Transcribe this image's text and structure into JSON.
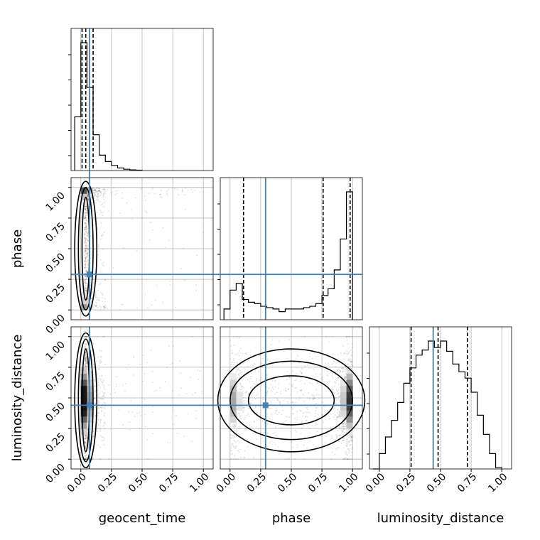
{
  "chart_data": {
    "type": "corner",
    "parameters": [
      "geocent_time",
      "phase",
      "luminosity_distance"
    ],
    "ticks": [
      0.0,
      0.25,
      0.5,
      0.75,
      1.0
    ],
    "tick_labels": [
      "0.00",
      "0.25",
      "0.50",
      "0.75",
      "1.00"
    ],
    "range": [
      -0.08,
      1.08
    ],
    "grid": true,
    "truth": {
      "geocent_time": 0.07,
      "phase": 0.29,
      "luminosity_distance": 0.44
    },
    "truth_color": "#4682b4",
    "quantiles": {
      "geocent_time": [
        0.01,
        0.04,
        0.1
      ],
      "phase": [
        0.11,
        0.76,
        0.98
      ],
      "luminosity_distance": [
        0.26,
        0.48,
        0.72
      ]
    },
    "histograms": {
      "geocent_time": {
        "edges": [
          -0.05,
          0.0,
          0.05,
          0.1,
          0.15,
          0.2,
          0.25,
          0.3,
          0.35,
          0.4,
          0.45,
          0.5
        ],
        "values": [
          0.42,
          1.0,
          0.65,
          0.28,
          0.12,
          0.07,
          0.04,
          0.02,
          0.01,
          0.005,
          0.003
        ]
      },
      "phase": {
        "edges": [
          -0.05,
          0.0,
          0.05,
          0.1,
          0.15,
          0.2,
          0.25,
          0.3,
          0.35,
          0.4,
          0.45,
          0.5,
          0.55,
          0.6,
          0.65,
          0.7,
          0.75,
          0.8,
          0.85,
          0.9,
          0.95,
          1.0
        ],
        "values": [
          0.08,
          0.22,
          0.27,
          0.15,
          0.13,
          0.12,
          0.1,
          0.09,
          0.08,
          0.06,
          0.08,
          0.08,
          0.08,
          0.09,
          0.1,
          0.12,
          0.18,
          0.23,
          0.37,
          0.6,
          0.95
        ]
      },
      "luminosity_distance": {
        "edges": [
          -0.05,
          0.0,
          0.05,
          0.1,
          0.15,
          0.2,
          0.25,
          0.3,
          0.35,
          0.4,
          0.45,
          0.5,
          0.55,
          0.6,
          0.65,
          0.7,
          0.75,
          0.8,
          0.85,
          0.9,
          0.95,
          1.0
        ],
        "values": [
          0.0,
          0.12,
          0.25,
          0.38,
          0.52,
          0.67,
          0.79,
          0.89,
          0.93,
          1.0,
          0.95,
          1.0,
          0.92,
          0.82,
          0.76,
          0.71,
          0.6,
          0.42,
          0.27,
          0.12,
          0.01
        ]
      }
    }
  }
}
